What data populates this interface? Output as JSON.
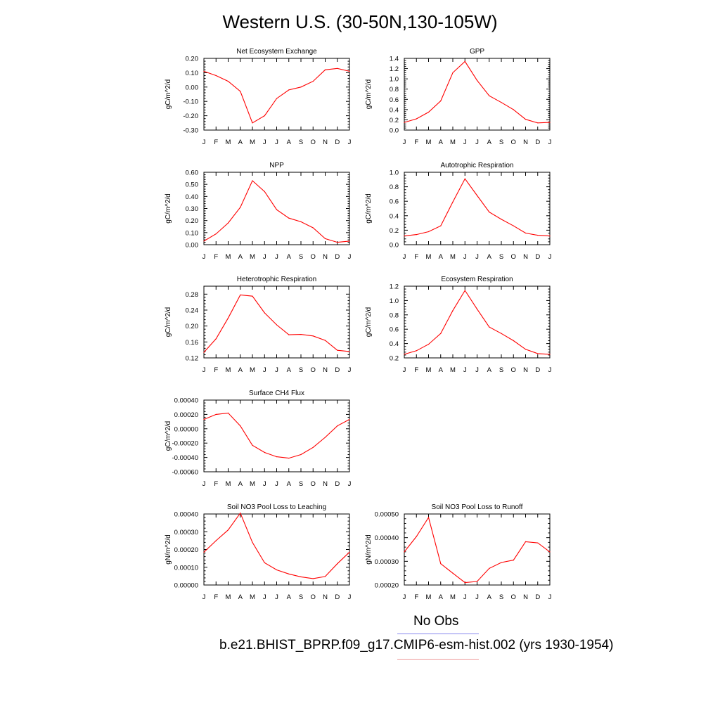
{
  "figure": {
    "title": "Western U.S. (30-50N,130-105W)",
    "legend": {
      "entries": [
        {
          "label": "No Obs",
          "color": "#8888ee"
        },
        {
          "label": "b.e21.BHIST_BPRP.f09_g17.CMIP6-esm-hist.002 (yrs 1930-1954)",
          "color": "#ee9999"
        }
      ]
    },
    "line_color": "#ff0000"
  },
  "chart_data": [
    {
      "type": "line",
      "title": "Net Ecosystem Exchange",
      "ylabel": "gC/m^2/d",
      "x": [
        "J",
        "F",
        "M",
        "A",
        "M",
        "J",
        "J",
        "A",
        "S",
        "O",
        "N",
        "D",
        "J"
      ],
      "ylim": [
        -0.3,
        0.2
      ],
      "yticks": [
        "-0.30",
        "-0.20",
        "-0.10",
        "0.00",
        "0.10",
        "0.20"
      ],
      "ytick_values": [
        -0.3,
        -0.2,
        -0.1,
        0.0,
        0.1,
        0.2
      ],
      "series": [
        {
          "values": [
            0.11,
            0.08,
            0.04,
            -0.03,
            -0.25,
            -0.2,
            -0.08,
            -0.02,
            0.0,
            0.04,
            0.12,
            0.13,
            0.11
          ]
        }
      ]
    },
    {
      "type": "line",
      "title": "GPP",
      "ylabel": "gC/m^2/d",
      "x": [
        "J",
        "F",
        "M",
        "A",
        "M",
        "J",
        "J",
        "A",
        "S",
        "O",
        "N",
        "D",
        "J"
      ],
      "ylim": [
        0.0,
        1.4
      ],
      "yticks": [
        "0.0",
        "0.2",
        "0.4",
        "0.6",
        "0.8",
        "1.0",
        "1.2",
        "1.4"
      ],
      "ytick_values": [
        0,
        0.2,
        0.4,
        0.6,
        0.8,
        1.0,
        1.2,
        1.4
      ],
      "series": [
        {
          "values": [
            0.15,
            0.22,
            0.35,
            0.57,
            1.12,
            1.34,
            0.97,
            0.67,
            0.54,
            0.4,
            0.21,
            0.14,
            0.15
          ]
        }
      ]
    },
    {
      "type": "line",
      "title": "NPP",
      "ylabel": "gC/m^2/d",
      "x": [
        "J",
        "F",
        "M",
        "A",
        "M",
        "J",
        "J",
        "A",
        "S",
        "O",
        "N",
        "D",
        "J"
      ],
      "ylim": [
        0.0,
        0.6
      ],
      "yticks": [
        "0.00",
        "0.10",
        "0.20",
        "0.30",
        "0.40",
        "0.50",
        "0.60"
      ],
      "ytick_values": [
        0,
        0.1,
        0.2,
        0.3,
        0.4,
        0.5,
        0.6
      ],
      "series": [
        {
          "values": [
            0.03,
            0.09,
            0.18,
            0.31,
            0.53,
            0.44,
            0.29,
            0.22,
            0.19,
            0.14,
            0.05,
            0.02,
            0.03
          ]
        }
      ]
    },
    {
      "type": "line",
      "title": "Autotrophic Respiration",
      "ylabel": "gC/m^2/d",
      "x": [
        "J",
        "F",
        "M",
        "A",
        "M",
        "J",
        "J",
        "A",
        "S",
        "O",
        "N",
        "D",
        "J"
      ],
      "ylim": [
        0.0,
        1.0
      ],
      "yticks": [
        "0.0",
        "0.2",
        "0.4",
        "0.6",
        "0.8",
        "1.0"
      ],
      "ytick_values": [
        0,
        0.2,
        0.4,
        0.6,
        0.8,
        1.0
      ],
      "series": [
        {
          "values": [
            0.12,
            0.14,
            0.18,
            0.26,
            0.59,
            0.91,
            0.68,
            0.45,
            0.35,
            0.26,
            0.16,
            0.13,
            0.12
          ]
        }
      ]
    },
    {
      "type": "line",
      "title": "Heterotrophic Respiration",
      "ylabel": "gC/m^2/d",
      "x": [
        "J",
        "F",
        "M",
        "A",
        "M",
        "J",
        "J",
        "A",
        "S",
        "O",
        "N",
        "D",
        "J"
      ],
      "ylim": [
        0.12,
        0.3
      ],
      "yticks": [
        "0.12",
        "0.16",
        "0.20",
        "0.24",
        "0.28"
      ],
      "ytick_values": [
        0.12,
        0.16,
        0.2,
        0.24,
        0.28
      ],
      "series": [
        {
          "values": [
            0.134,
            0.168,
            0.22,
            0.278,
            0.275,
            0.233,
            0.203,
            0.178,
            0.179,
            0.175,
            0.164,
            0.139,
            0.136
          ]
        }
      ]
    },
    {
      "type": "line",
      "title": "Ecosystem Respiration",
      "ylabel": "gC/m^2/d",
      "x": [
        "J",
        "F",
        "M",
        "A",
        "M",
        "J",
        "J",
        "A",
        "S",
        "O",
        "N",
        "D",
        "J"
      ],
      "ylim": [
        0.2,
        1.2
      ],
      "yticks": [
        "0.2",
        "0.4",
        "0.6",
        "0.8",
        "1.0",
        "1.2"
      ],
      "ytick_values": [
        0.2,
        0.4,
        0.6,
        0.8,
        1.0,
        1.2
      ],
      "series": [
        {
          "values": [
            0.25,
            0.3,
            0.39,
            0.54,
            0.86,
            1.14,
            0.88,
            0.63,
            0.54,
            0.44,
            0.32,
            0.26,
            0.25
          ]
        }
      ]
    },
    {
      "type": "line",
      "title": "Surface CH4 Flux",
      "ylabel": "gC/m^2/d",
      "x": [
        "J",
        "F",
        "M",
        "A",
        "M",
        "J",
        "J",
        "A",
        "S",
        "O",
        "N",
        "D",
        "J"
      ],
      "ylim": [
        -0.0006,
        0.0004
      ],
      "yticks": [
        "-0.00060",
        "-0.00040",
        "-0.00020",
        "0.00000",
        "0.00020",
        "0.00040"
      ],
      "ytick_values": [
        -0.0006,
        -0.0004,
        -0.0002,
        0,
        0.0002,
        0.0004
      ],
      "series": [
        {
          "values": [
            0.00013,
            0.0002,
            0.00022,
            4e-05,
            -0.00023,
            -0.00033,
            -0.00039,
            -0.00041,
            -0.00036,
            -0.00026,
            -0.00012,
            4e-05,
            0.00013
          ]
        }
      ]
    },
    {
      "type": "line",
      "title": "Soil NO3 Pool Loss to Leaching",
      "ylabel": "gN/m^2/d",
      "x": [
        "J",
        "F",
        "M",
        "A",
        "M",
        "J",
        "J",
        "A",
        "S",
        "O",
        "N",
        "D",
        "J"
      ],
      "ylim": [
        0.0,
        0.0004
      ],
      "yticks": [
        "0.00000",
        "0.00010",
        "0.00020",
        "0.00030",
        "0.00040"
      ],
      "ytick_values": [
        0,
        0.0001,
        0.0002,
        0.0003,
        0.0004
      ],
      "series": [
        {
          "values": [
            0.000185,
            0.00025,
            0.00031,
            0.000405,
            0.00024,
            0.000125,
            8.5e-05,
            6.2e-05,
            4.6e-05,
            3.6e-05,
            4.8e-05,
            0.00012,
            0.000185
          ]
        }
      ]
    },
    {
      "type": "line",
      "title": "Soil NO3 Pool Loss to Runoff",
      "ylabel": "gN/m^2/d",
      "x": [
        "J",
        "F",
        "M",
        "A",
        "M",
        "J",
        "J",
        "A",
        "S",
        "O",
        "N",
        "D",
        "J"
      ],
      "ylim": [
        0.0002,
        0.0005
      ],
      "yticks": [
        "0.00020",
        "0.00030",
        "0.00040",
        "0.00050"
      ],
      "ytick_values": [
        0.0002,
        0.0003,
        0.0004,
        0.0005
      ],
      "series": [
        {
          "values": [
            0.00034,
            0.000405,
            0.000485,
            0.00029,
            0.00025,
            0.00021,
            0.000215,
            0.00027,
            0.000295,
            0.000305,
            0.000383,
            0.000378,
            0.00034
          ]
        }
      ]
    }
  ]
}
